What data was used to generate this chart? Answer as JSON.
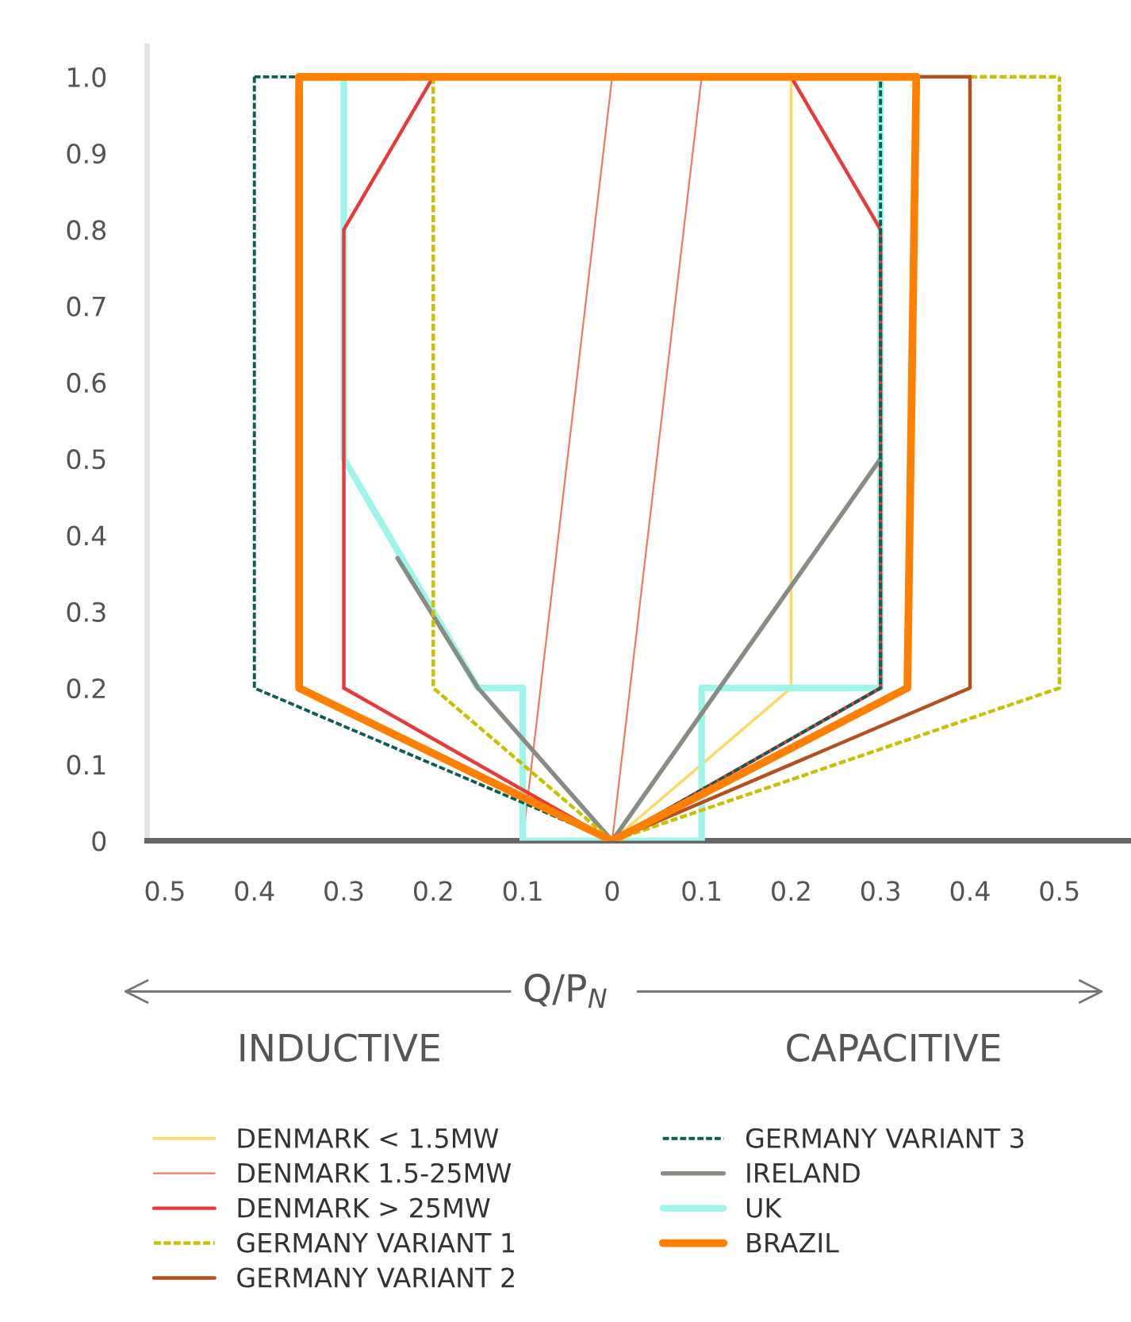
{
  "chart_data": {
    "type": "line",
    "xlabel": "Q/P$_{N}$",
    "annotations": [
      "INDUCTIVE",
      "CAPACITIVE"
    ],
    "xlim": [
      -0.52,
      0.58
    ],
    "ylim": [
      0,
      1.04
    ],
    "xticks": [
      {
        "value": -0.5,
        "label": "0.5"
      },
      {
        "value": -0.4,
        "label": "0.4"
      },
      {
        "value": -0.3,
        "label": "0.3"
      },
      {
        "value": -0.2,
        "label": "0.2"
      },
      {
        "value": -0.1,
        "label": "0.1"
      },
      0,
      0.1,
      0.2,
      0.3,
      0.4,
      0.5
    ],
    "yticks": [
      0,
      0.1,
      0.2,
      0.3,
      0.4,
      0.5,
      0.6,
      0.7,
      0.8,
      0.9,
      {
        "value": 1.0,
        "label": "1.0"
      }
    ],
    "grid": false,
    "legend": "bottom",
    "marker": "none",
    "series": [
      {
        "name": "DENMARK < 1.5MW",
        "color": "#ffd966",
        "line_style": "solid",
        "x": [
          0,
          0.2,
          0.2
        ],
        "values": [
          0,
          0.2,
          1.0
        ]
      },
      {
        "name": "DENMARK 1.5-25MW",
        "color": "#f07a60",
        "line_style": "solid",
        "x": [
          -0.1,
          0,
          0.1,
          0
        ],
        "values": [
          0,
          1.0,
          1.0,
          0
        ]
      },
      {
        "name": "DENMARK > 25MW",
        "color": "#e83a3a",
        "line_style": "solid",
        "x": [
          -0.3,
          -0.3,
          -0.2,
          0.2,
          0.3,
          0.3
        ],
        "values": [
          0.2,
          0.8,
          1.0,
          1.0,
          0.8,
          0.2
        ]
      },
      {
        "color": "#e83a3a",
        "line_style": "solid",
        "x": [
          -0.3,
          0,
          0.3
        ],
        "values": [
          0.2,
          0,
          0.2
        ]
      },
      {
        "name": "GERMANY VARIANT 1",
        "color": "#c8c000",
        "line_style": "dotted",
        "x": [
          -0.2,
          -0.2,
          0,
          0.5,
          0.5
        ],
        "values": [
          1.0,
          0.2,
          0,
          0.2,
          1.0
        ]
      },
      {
        "color": "#c8c000",
        "line_style": "dotted",
        "x": [
          0.4,
          0.5
        ],
        "values": [
          1.0,
          1.0
        ]
      },
      {
        "name": "GERMANY VARIANT 2",
        "color": "#b5501c",
        "line_style": "solid",
        "x": [
          0,
          0.4,
          0.4
        ],
        "values": [
          0,
          0.2,
          1.0
        ]
      },
      {
        "color": "#b5501c",
        "line_style": "solid",
        "x": [
          0.34,
          0.4
        ],
        "values": [
          1.0,
          1.0
        ]
      },
      {
        "name": "GERMANY VARIANT 3",
        "color": "#0d5e55",
        "line_style": "dotted",
        "x": [
          -0.4,
          -0.4,
          0,
          0.3,
          0.3
        ],
        "values": [
          1.0,
          0.2,
          0,
          0.2,
          1.0
        ]
      },
      {
        "color": "#0d5e55",
        "line_style": "dotted",
        "x": [
          -0.4,
          -0.35
        ],
        "values": [
          1.0,
          1.0
        ]
      },
      {
        "name": "IRELAND",
        "color": "#878c84",
        "line_style": "solid",
        "x": [
          -0.24,
          -0.15,
          0,
          0.3
        ],
        "values": [
          0.37,
          0.2,
          0,
          0.5
        ]
      },
      {
        "name": "UK",
        "color": "#9ff5ea",
        "line_style": "solid",
        "x": [
          -0.3,
          -0.3,
          -0.15,
          -0.1,
          -0.1,
          0.1,
          0.1,
          0.3,
          0.3
        ],
        "values": [
          1.0,
          0.5,
          0.2,
          0.2,
          0,
          0,
          0.2,
          0.2,
          1.0
        ]
      },
      {
        "name": "BRAZIL",
        "color": "#ff8000",
        "line_style": "solid",
        "x": [
          -0.35,
          -0.35,
          0,
          0.33,
          0.34
        ],
        "values": [
          1.0,
          0.2,
          0,
          0.2,
          1.0
        ]
      },
      {
        "color": "#ff8000",
        "line_style": "solid",
        "x": [
          -0.35,
          0.34
        ],
        "values": [
          1.0,
          1.0
        ]
      }
    ]
  }
}
